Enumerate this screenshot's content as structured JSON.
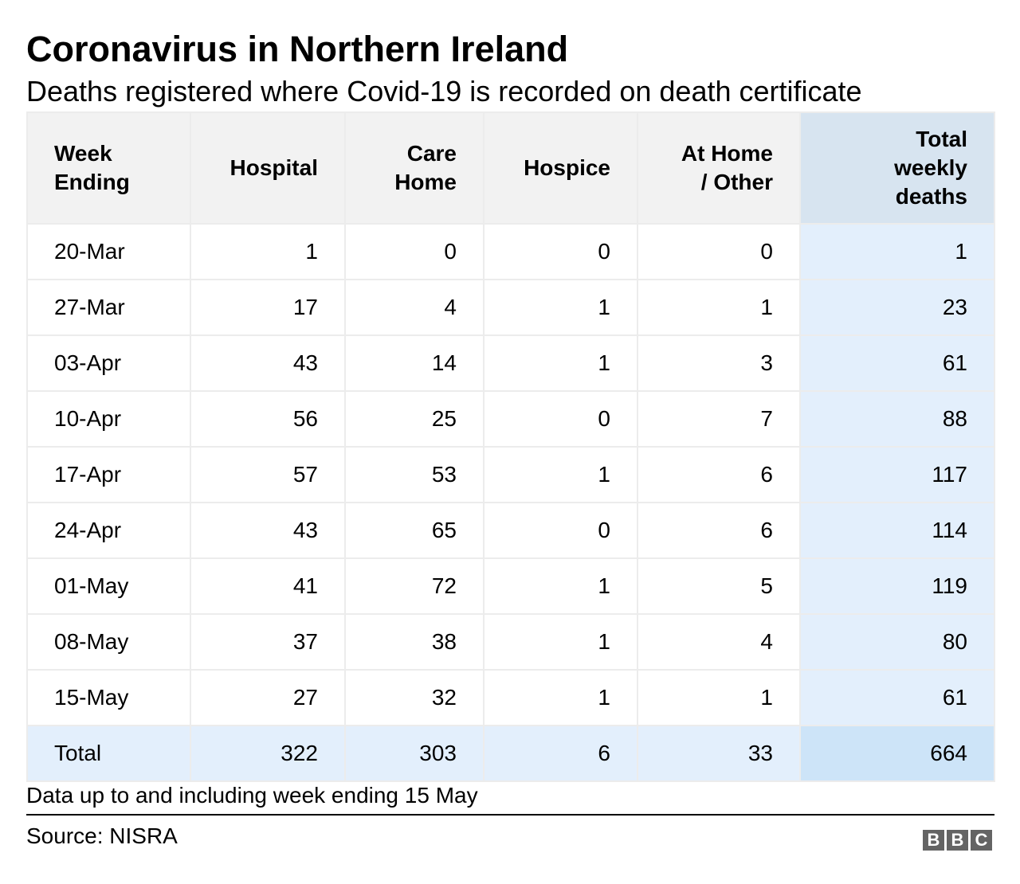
{
  "title": "Coronavirus in Northern Ireland",
  "subtitle": "Deaths registered where Covid-19 is recorded on death certificate",
  "note": "Data up to and including week ending 15 May",
  "source": "Source: NISRA",
  "logo": [
    "B",
    "B",
    "C"
  ],
  "colors": {
    "header_bg": "#f2f2f2",
    "total_col_header": "#d7e4f0",
    "total_col": "#e3effc",
    "grand_total": "#cde4f8"
  },
  "chart_data": {
    "type": "table",
    "title": "Coronavirus in Northern Ireland",
    "columns": [
      [
        "Week",
        "Ending"
      ],
      [
        "Hospital"
      ],
      [
        "Care",
        "Home"
      ],
      [
        "Hospice"
      ],
      [
        "At Home",
        "/ Other"
      ],
      [
        "Total",
        "weekly",
        "deaths"
      ]
    ],
    "rows": [
      [
        "20-Mar",
        "1",
        "0",
        "0",
        "0",
        "1"
      ],
      [
        "27-Mar",
        "17",
        "4",
        "1",
        "1",
        "23"
      ],
      [
        "03-Apr",
        "43",
        "14",
        "1",
        "3",
        "61"
      ],
      [
        "10-Apr",
        "56",
        "25",
        "0",
        "7",
        "88"
      ],
      [
        "17-Apr",
        "57",
        "53",
        "1",
        "6",
        "117"
      ],
      [
        "24-Apr",
        "43",
        "65",
        "0",
        "6",
        "114"
      ],
      [
        "01-May",
        "41",
        "72",
        "1",
        "5",
        "119"
      ],
      [
        "08-May",
        "37",
        "38",
        "1",
        "4",
        "80"
      ],
      [
        "15-May",
        "27",
        "32",
        "1",
        "1",
        "61"
      ]
    ],
    "total_row": [
      "Total",
      "322",
      "303",
      "6",
      "33",
      "664"
    ]
  }
}
